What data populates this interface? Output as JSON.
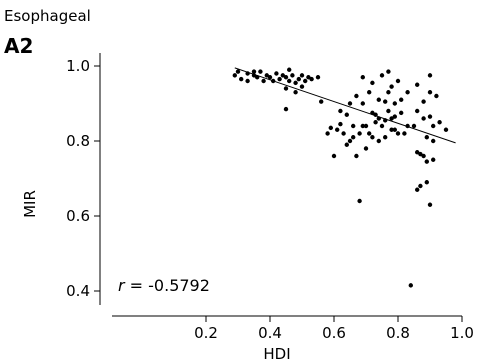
{
  "chart_data": {
    "type": "scatter",
    "subtitle": "Esophageal",
    "panel_label": "A2",
    "xlabel": "HDI",
    "ylabel": "MIR",
    "xlim": [
      0.15,
      1.0
    ],
    "ylim": [
      0.35,
      1.0
    ],
    "xticks": [
      0.2,
      0.4,
      0.6,
      0.8,
      1.0
    ],
    "xtick_labels": [
      "0.2",
      "0.4",
      "0.6",
      "0.8",
      "1.0"
    ],
    "yticks": [
      0.4,
      0.6,
      0.8,
      1.0
    ],
    "ytick_labels": [
      "0.4",
      "0.6",
      "0.8",
      "1.0"
    ],
    "grid": false,
    "annotation": {
      "r_symbol": "r",
      "text": " = -0.5792"
    },
    "trend_line": {
      "x": [
        0.29,
        0.98
      ],
      "y": [
        0.995,
        0.795
      ]
    },
    "points": [
      {
        "x": 0.29,
        "y": 0.975
      },
      {
        "x": 0.3,
        "y": 0.985
      },
      {
        "x": 0.31,
        "y": 0.965
      },
      {
        "x": 0.33,
        "y": 0.98
      },
      {
        "x": 0.33,
        "y": 0.96
      },
      {
        "x": 0.35,
        "y": 0.975
      },
      {
        "x": 0.35,
        "y": 0.985
      },
      {
        "x": 0.36,
        "y": 0.97
      },
      {
        "x": 0.37,
        "y": 0.985
      },
      {
        "x": 0.38,
        "y": 0.96
      },
      {
        "x": 0.39,
        "y": 0.975
      },
      {
        "x": 0.4,
        "y": 0.97
      },
      {
        "x": 0.41,
        "y": 0.96
      },
      {
        "x": 0.42,
        "y": 0.98
      },
      {
        "x": 0.43,
        "y": 0.965
      },
      {
        "x": 0.44,
        "y": 0.975
      },
      {
        "x": 0.45,
        "y": 0.94
      },
      {
        "x": 0.45,
        "y": 0.97
      },
      {
        "x": 0.46,
        "y": 0.96
      },
      {
        "x": 0.46,
        "y": 0.99
      },
      {
        "x": 0.47,
        "y": 0.975
      },
      {
        "x": 0.48,
        "y": 0.955
      },
      {
        "x": 0.48,
        "y": 0.93
      },
      {
        "x": 0.49,
        "y": 0.965
      },
      {
        "x": 0.5,
        "y": 0.975
      },
      {
        "x": 0.51,
        "y": 0.96
      },
      {
        "x": 0.52,
        "y": 0.97
      },
      {
        "x": 0.53,
        "y": 0.965
      },
      {
        "x": 0.55,
        "y": 0.97
      },
      {
        "x": 0.45,
        "y": 0.885
      },
      {
        "x": 0.56,
        "y": 0.905
      },
      {
        "x": 0.5,
        "y": 0.945
      },
      {
        "x": 0.58,
        "y": 0.82
      },
      {
        "x": 0.59,
        "y": 0.835
      },
      {
        "x": 0.6,
        "y": 0.76
      },
      {
        "x": 0.61,
        "y": 0.83
      },
      {
        "x": 0.62,
        "y": 0.845
      },
      {
        "x": 0.63,
        "y": 0.82
      },
      {
        "x": 0.64,
        "y": 0.87
      },
      {
        "x": 0.64,
        "y": 0.79
      },
      {
        "x": 0.65,
        "y": 0.9
      },
      {
        "x": 0.65,
        "y": 0.8
      },
      {
        "x": 0.66,
        "y": 0.84
      },
      {
        "x": 0.67,
        "y": 0.76
      },
      {
        "x": 0.67,
        "y": 0.92
      },
      {
        "x": 0.68,
        "y": 0.82
      },
      {
        "x": 0.68,
        "y": 0.64
      },
      {
        "x": 0.69,
        "y": 0.97
      },
      {
        "x": 0.69,
        "y": 0.9
      },
      {
        "x": 0.7,
        "y": 0.78
      },
      {
        "x": 0.7,
        "y": 0.84
      },
      {
        "x": 0.71,
        "y": 0.93
      },
      {
        "x": 0.71,
        "y": 0.82
      },
      {
        "x": 0.72,
        "y": 0.955
      },
      {
        "x": 0.72,
        "y": 0.875
      },
      {
        "x": 0.73,
        "y": 0.85
      },
      {
        "x": 0.73,
        "y": 0.87
      },
      {
        "x": 0.74,
        "y": 0.91
      },
      {
        "x": 0.74,
        "y": 0.8
      },
      {
        "x": 0.75,
        "y": 0.84
      },
      {
        "x": 0.75,
        "y": 0.975
      },
      {
        "x": 0.76,
        "y": 0.905
      },
      {
        "x": 0.76,
        "y": 0.855
      },
      {
        "x": 0.77,
        "y": 0.985
      },
      {
        "x": 0.77,
        "y": 0.93
      },
      {
        "x": 0.77,
        "y": 0.88
      },
      {
        "x": 0.78,
        "y": 0.945
      },
      {
        "x": 0.78,
        "y": 0.83
      },
      {
        "x": 0.79,
        "y": 0.9
      },
      {
        "x": 0.79,
        "y": 0.865
      },
      {
        "x": 0.8,
        "y": 0.82
      },
      {
        "x": 0.8,
        "y": 0.96
      },
      {
        "x": 0.81,
        "y": 0.91
      },
      {
        "x": 0.81,
        "y": 0.875
      },
      {
        "x": 0.82,
        "y": 0.82
      },
      {
        "x": 0.83,
        "y": 0.84
      },
      {
        "x": 0.83,
        "y": 0.93
      },
      {
        "x": 0.84,
        "y": 0.415
      },
      {
        "x": 0.85,
        "y": 0.84
      },
      {
        "x": 0.86,
        "y": 0.95
      },
      {
        "x": 0.86,
        "y": 0.88
      },
      {
        "x": 0.86,
        "y": 0.77
      },
      {
        "x": 0.86,
        "y": 0.67
      },
      {
        "x": 0.87,
        "y": 0.765
      },
      {
        "x": 0.87,
        "y": 0.68
      },
      {
        "x": 0.88,
        "y": 0.905
      },
      {
        "x": 0.88,
        "y": 0.86
      },
      {
        "x": 0.88,
        "y": 0.76
      },
      {
        "x": 0.89,
        "y": 0.69
      },
      {
        "x": 0.89,
        "y": 0.745
      },
      {
        "x": 0.89,
        "y": 0.81
      },
      {
        "x": 0.9,
        "y": 0.93
      },
      {
        "x": 0.9,
        "y": 0.975
      },
      {
        "x": 0.9,
        "y": 0.865
      },
      {
        "x": 0.9,
        "y": 0.63
      },
      {
        "x": 0.91,
        "y": 0.8
      },
      {
        "x": 0.91,
        "y": 0.75
      },
      {
        "x": 0.91,
        "y": 0.84
      },
      {
        "x": 0.92,
        "y": 0.92
      },
      {
        "x": 0.93,
        "y": 0.85
      },
      {
        "x": 0.95,
        "y": 0.83
      },
      {
        "x": 0.62,
        "y": 0.88
      },
      {
        "x": 0.66,
        "y": 0.81
      },
      {
        "x": 0.69,
        "y": 0.84
      },
      {
        "x": 0.72,
        "y": 0.81
      },
      {
        "x": 0.74,
        "y": 0.86
      },
      {
        "x": 0.76,
        "y": 0.81
      },
      {
        "x": 0.78,
        "y": 0.86
      },
      {
        "x": 0.79,
        "y": 0.83
      }
    ]
  }
}
